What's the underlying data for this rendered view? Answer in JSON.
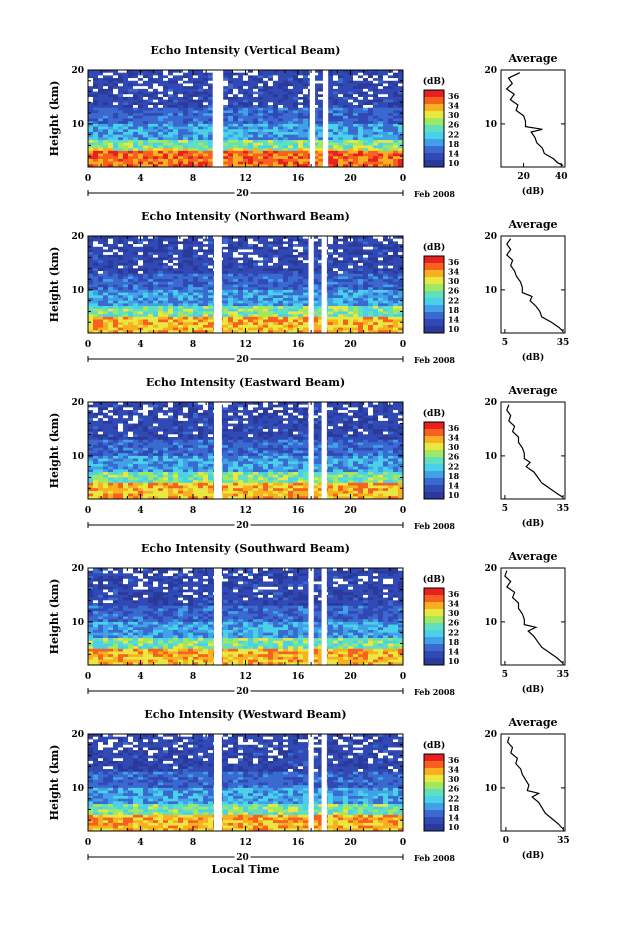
{
  "xlabel": "Local Time",
  "colors": [
    "#2a3a9a",
    "#3049b5",
    "#3a6ad0",
    "#40a0e8",
    "#4ad0e8",
    "#60e0c0",
    "#a0e860",
    "#e8e840",
    "#f8b020",
    "#f86020",
    "#e82020"
  ],
  "chart_data": [
    {
      "type": "heatmap",
      "title": "Echo Intensity (Vertical Beam)",
      "ylabel": "Height (km)",
      "ylim": [
        2,
        20
      ],
      "yticks": [
        "20",
        "10"
      ],
      "xlim": [
        0,
        24
      ],
      "xticks": [
        "0",
        "4",
        "8",
        "12",
        "16",
        "20",
        "0"
      ],
      "date_label": "20",
      "date_suffix": "Feb 2008",
      "colorbar": {
        "unit": "(dB)",
        "levels": [
          "36",
          "34",
          "30",
          "26",
          "22",
          "18",
          "14",
          "10"
        ]
      },
      "gaps": [
        [
          9.5,
          10.3
        ],
        [
          16.9,
          17.3
        ],
        [
          17.9,
          18.3
        ]
      ],
      "profile": {
        "title": "Average",
        "xlabel": "(dB)",
        "xlim": [
          8,
          42
        ],
        "xticks": [
          "20",
          "40"
        ],
        "yticks": [
          "20",
          "10"
        ],
        "points": [
          [
            18,
            19.5
          ],
          [
            12,
            18.5
          ],
          [
            14,
            17.5
          ],
          [
            11,
            16.5
          ],
          [
            15,
            15.5
          ],
          [
            13,
            14.5
          ],
          [
            17,
            13.5
          ],
          [
            16,
            12.5
          ],
          [
            20,
            11.5
          ],
          [
            21,
            10.5
          ],
          [
            21,
            9.5
          ],
          [
            30,
            9.0
          ],
          [
            24,
            8.5
          ],
          [
            26,
            7.5
          ],
          [
            27,
            6.5
          ],
          [
            30,
            5.5
          ],
          [
            31,
            4.5
          ],
          [
            36,
            3.5
          ],
          [
            38,
            2.8
          ],
          [
            41,
            2.3
          ]
        ]
      }
    },
    {
      "type": "heatmap",
      "title": "Echo Intensity (Northward Beam)",
      "ylabel": "Height (km)",
      "ylim": [
        2,
        20
      ],
      "yticks": [
        "20",
        "10"
      ],
      "xlim": [
        0,
        24
      ],
      "xticks": [
        "0",
        "4",
        "8",
        "12",
        "16",
        "20",
        "0"
      ],
      "date_label": "20",
      "date_suffix": "Feb 2008",
      "colorbar": {
        "unit": "(dB)",
        "levels": [
          "36",
          "34",
          "30",
          "26",
          "22",
          "18",
          "14",
          "10"
        ]
      },
      "gaps": [
        [
          9.6,
          10.2
        ],
        [
          16.8,
          17.2
        ],
        [
          17.8,
          18.2
        ]
      ],
      "profile": {
        "title": "Average",
        "xlabel": "(dB)",
        "xlim": [
          3,
          36
        ],
        "xticks": [
          "5",
          "35"
        ],
        "yticks": [
          "20",
          "10"
        ],
        "points": [
          [
            8,
            19.5
          ],
          [
            6,
            18.5
          ],
          [
            8,
            17.5
          ],
          [
            6,
            16.5
          ],
          [
            9,
            15.5
          ],
          [
            8,
            14.5
          ],
          [
            10,
            13.5
          ],
          [
            11,
            12.5
          ],
          [
            13,
            11.5
          ],
          [
            14,
            10.5
          ],
          [
            14,
            9.5
          ],
          [
            19,
            8.8
          ],
          [
            18,
            8.0
          ],
          [
            21,
            7.0
          ],
          [
            23,
            6.0
          ],
          [
            24,
            5.0
          ],
          [
            29,
            4.0
          ],
          [
            33,
            3.0
          ],
          [
            35,
            2.3
          ]
        ]
      }
    },
    {
      "type": "heatmap",
      "title": "Echo Intensity (Eastward Beam)",
      "ylabel": "Height (km)",
      "ylim": [
        2,
        20
      ],
      "yticks": [
        "20",
        "10"
      ],
      "xlim": [
        0,
        24
      ],
      "xticks": [
        "0",
        "4",
        "8",
        "12",
        "16",
        "20",
        "0"
      ],
      "date_label": "20",
      "date_suffix": "Feb 2008",
      "colorbar": {
        "unit": "(dB)",
        "levels": [
          "36",
          "34",
          "30",
          "26",
          "22",
          "18",
          "14",
          "10"
        ]
      },
      "gaps": [
        [
          9.6,
          10.2
        ],
        [
          16.8,
          17.2
        ],
        [
          17.8,
          18.2
        ]
      ],
      "profile": {
        "title": "Average",
        "xlabel": "(dB)",
        "xlim": [
          3,
          36
        ],
        "xticks": [
          "5",
          "35"
        ],
        "yticks": [
          "20",
          "10"
        ],
        "points": [
          [
            7,
            19.5
          ],
          [
            6,
            18.5
          ],
          [
            8,
            17.5
          ],
          [
            7,
            16.5
          ],
          [
            10,
            15.5
          ],
          [
            9,
            14.5
          ],
          [
            12,
            13.5
          ],
          [
            12,
            12.5
          ],
          [
            14,
            11.5
          ],
          [
            15,
            10.5
          ],
          [
            15,
            9.5
          ],
          [
            18,
            8.8
          ],
          [
            16,
            8.0
          ],
          [
            20,
            7.0
          ],
          [
            22,
            6.0
          ],
          [
            24,
            5.0
          ],
          [
            28,
            4.0
          ],
          [
            32,
            3.0
          ],
          [
            35,
            2.3
          ]
        ]
      }
    },
    {
      "type": "heatmap",
      "title": "Echo Intensity (Southward Beam)",
      "ylabel": "Height (km)",
      "ylim": [
        2,
        20
      ],
      "yticks": [
        "20",
        "10"
      ],
      "xlim": [
        0,
        24
      ],
      "xticks": [
        "0",
        "4",
        "8",
        "12",
        "16",
        "20",
        "0"
      ],
      "date_label": "20",
      "date_suffix": "Feb 2008",
      "colorbar": {
        "unit": "(dB)",
        "levels": [
          "36",
          "34",
          "30",
          "26",
          "22",
          "18",
          "14",
          "10"
        ]
      },
      "gaps": [
        [
          9.6,
          10.2
        ],
        [
          16.8,
          17.2
        ],
        [
          17.8,
          18.2
        ]
      ],
      "profile": {
        "title": "Average",
        "xlabel": "(dB)",
        "xlim": [
          3,
          36
        ],
        "xticks": [
          "5",
          "35"
        ],
        "yticks": [
          "20",
          "10"
        ],
        "points": [
          [
            6,
            19.5
          ],
          [
            5,
            18.5
          ],
          [
            8,
            17.5
          ],
          [
            6,
            16.5
          ],
          [
            10,
            15.5
          ],
          [
            9,
            14.5
          ],
          [
            12,
            13.5
          ],
          [
            12,
            12.5
          ],
          [
            14,
            11.5
          ],
          [
            15,
            10.5
          ],
          [
            15,
            9.5
          ],
          [
            21,
            9.0
          ],
          [
            17,
            8.3
          ],
          [
            20,
            7.3
          ],
          [
            22,
            6.3
          ],
          [
            24,
            5.3
          ],
          [
            28,
            4.3
          ],
          [
            32,
            3.3
          ],
          [
            35,
            2.3
          ]
        ]
      }
    },
    {
      "type": "heatmap",
      "title": "Echo Intensity (Westward Beam)",
      "ylabel": "Height (km)",
      "ylim": [
        2,
        20
      ],
      "yticks": [
        "20",
        "10"
      ],
      "xlim": [
        0,
        24
      ],
      "xticks": [
        "0",
        "4",
        "8",
        "12",
        "16",
        "20",
        "0"
      ],
      "date_label": "20",
      "date_suffix": "Feb 2008",
      "colorbar": {
        "unit": "(dB)",
        "levels": [
          "36",
          "34",
          "30",
          "26",
          "22",
          "18",
          "14",
          "10"
        ]
      },
      "gaps": [
        [
          9.6,
          10.2
        ],
        [
          16.8,
          17.2
        ],
        [
          17.8,
          18.2
        ]
      ],
      "profile": {
        "title": "Average",
        "xlabel": "(dB)",
        "xlim": [
          -3,
          36
        ],
        "xticks": [
          "0",
          "35"
        ],
        "yticks": [
          "20",
          "10"
        ],
        "points": [
          [
            2,
            19.5
          ],
          [
            1,
            18.5
          ],
          [
            4,
            17.5
          ],
          [
            3,
            16.5
          ],
          [
            7,
            15.5
          ],
          [
            6,
            14.5
          ],
          [
            9,
            13.5
          ],
          [
            10,
            12.5
          ],
          [
            12,
            11.5
          ],
          [
            14,
            10.5
          ],
          [
            13,
            9.5
          ],
          [
            20,
            9.0
          ],
          [
            16,
            8.3
          ],
          [
            20,
            7.3
          ],
          [
            22,
            6.3
          ],
          [
            24,
            5.3
          ],
          [
            28,
            4.3
          ],
          [
            32,
            3.3
          ],
          [
            35,
            2.3
          ]
        ]
      }
    }
  ]
}
